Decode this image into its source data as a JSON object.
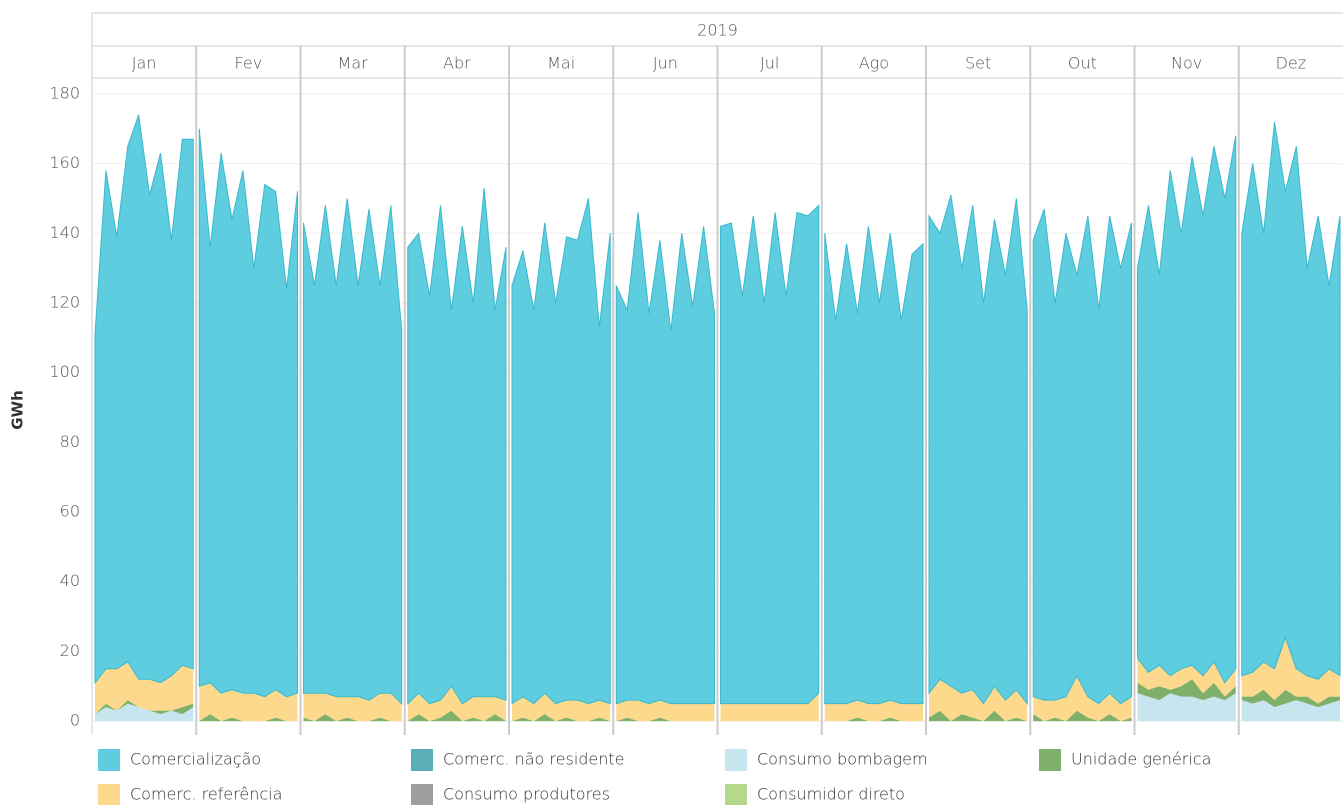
{
  "chart_data": {
    "type": "area",
    "stacked": true,
    "year": "2019",
    "ylabel": "GWh",
    "categories": [
      "Jan",
      "Fev",
      "Mar",
      "Abr",
      "Mai",
      "Jun",
      "Jul",
      "Ago",
      "Set",
      "Out",
      "Nov",
      "Dez"
    ],
    "ylim": [
      -4,
      184
    ],
    "yticks": [
      0,
      20,
      40,
      60,
      80,
      100,
      120,
      140,
      160,
      180
    ],
    "grid": true,
    "series": [
      {
        "name": "Comercialização",
        "color": "#5fcde0",
        "values": [
          [
            100,
            143,
            124,
            148,
            162,
            139,
            152,
            125,
            151,
            152
          ],
          [
            160,
            125,
            155,
            135,
            150,
            122,
            147,
            143,
            117,
            144
          ],
          [
            135,
            117,
            140,
            118,
            143,
            118,
            141,
            117,
            140,
            107
          ],
          [
            131,
            132,
            117,
            142,
            108,
            137,
            113,
            146,
            111,
            130
          ],
          [
            120,
            128,
            113,
            135,
            115,
            133,
            132,
            145,
            107,
            135
          ],
          [
            120,
            112,
            140,
            112,
            132,
            107,
            135,
            114,
            137,
            112
          ],
          [
            137,
            138,
            117,
            140,
            115,
            141,
            117,
            141,
            140,
            140
          ],
          [
            135,
            110,
            132,
            111,
            137,
            115,
            134,
            110,
            129,
            132
          ],
          [
            137,
            128,
            141,
            122,
            139,
            115,
            134,
            122,
            141,
            113
          ],
          [
            131,
            141,
            114,
            133,
            115,
            138,
            113,
            137,
            125,
            136
          ],
          [
            112,
            134,
            112,
            145,
            125,
            146,
            132,
            148,
            139,
            153
          ],
          [
            127,
            146,
            123,
            157,
            128,
            150,
            117,
            133,
            110,
            132
          ]
        ]
      },
      {
        "name": "Comerc. não residente",
        "color": "#5aaeb8",
        "values": [
          [
            0,
            0,
            0,
            0,
            0,
            0,
            0,
            0,
            0,
            0
          ],
          [
            0,
            0,
            0,
            0,
            0,
            0,
            0,
            0,
            0,
            0
          ],
          [
            0,
            0,
            0,
            0,
            0,
            0,
            0,
            0,
            0,
            0
          ],
          [
            0,
            0,
            0,
            0,
            0,
            0,
            0,
            0,
            0,
            0
          ],
          [
            0,
            0,
            0,
            0,
            0,
            0,
            0,
            0,
            0,
            0
          ],
          [
            0,
            0,
            0,
            0,
            0,
            0,
            0,
            0,
            0,
            0
          ],
          [
            0,
            0,
            0,
            0,
            0,
            0,
            0,
            0,
            0,
            0
          ],
          [
            0,
            0,
            0,
            0,
            0,
            0,
            0,
            0,
            0,
            0
          ],
          [
            0,
            0,
            0,
            0,
            0,
            0,
            0,
            0,
            0,
            0
          ],
          [
            0,
            0,
            0,
            0,
            0,
            0,
            0,
            0,
            0,
            0
          ],
          [
            0,
            0,
            0,
            0,
            0,
            0,
            0,
            0,
            0,
            0
          ],
          [
            0,
            0,
            0,
            0,
            0,
            0,
            0,
            0,
            0,
            0
          ]
        ]
      },
      {
        "name": "Consumo bombagem",
        "color": "#c6e5ef",
        "values": [
          [
            2,
            4,
            3,
            5,
            4,
            3,
            2,
            3,
            2,
            4
          ],
          [
            0,
            0,
            0,
            0,
            0,
            0,
            0,
            0,
            0,
            0
          ],
          [
            0,
            0,
            0,
            0,
            0,
            0,
            0,
            0,
            0,
            0
          ],
          [
            0,
            0,
            0,
            0,
            0,
            0,
            0,
            0,
            0,
            0
          ],
          [
            0,
            0,
            0,
            0,
            0,
            0,
            0,
            0,
            0,
            0
          ],
          [
            0,
            0,
            0,
            0,
            0,
            0,
            0,
            0,
            0,
            0
          ],
          [
            0,
            0,
            0,
            0,
            0,
            0,
            0,
            0,
            0,
            0
          ],
          [
            0,
            0,
            0,
            0,
            0,
            0,
            0,
            0,
            0,
            0
          ],
          [
            0,
            0,
            0,
            0,
            0,
            0,
            0,
            0,
            0,
            0
          ],
          [
            0,
            0,
            0,
            0,
            0,
            0,
            0,
            0,
            0,
            0
          ],
          [
            8,
            7,
            6,
            8,
            7,
            7,
            6,
            7,
            6,
            8
          ],
          [
            6,
            5,
            6,
            4,
            5,
            6,
            5,
            4,
            5,
            6
          ]
        ]
      },
      {
        "name": "Unidade genérica",
        "color": "#7fb069",
        "values": [
          [
            0,
            1,
            0,
            1,
            0,
            0,
            1,
            0,
            2,
            1
          ],
          [
            0,
            2,
            0,
            1,
            0,
            0,
            0,
            1,
            0,
            0
          ],
          [
            1,
            0,
            2,
            0,
            1,
            0,
            0,
            1,
            0,
            0
          ],
          [
            0,
            2,
            0,
            1,
            3,
            0,
            1,
            0,
            2,
            0
          ],
          [
            0,
            1,
            0,
            2,
            0,
            1,
            0,
            0,
            1,
            0
          ],
          [
            0,
            1,
            0,
            0,
            1,
            0,
            0,
            0,
            0,
            0
          ],
          [
            0,
            0,
            0,
            0,
            0,
            0,
            0,
            0,
            0,
            0
          ],
          [
            0,
            0,
            0,
            1,
            0,
            0,
            1,
            0,
            0,
            0
          ],
          [
            1,
            3,
            0,
            2,
            1,
            0,
            3,
            0,
            1,
            0
          ],
          [
            2,
            0,
            1,
            0,
            3,
            1,
            0,
            2,
            0,
            1
          ],
          [
            3,
            2,
            4,
            1,
            3,
            5,
            2,
            4,
            1,
            2
          ],
          [
            1,
            2,
            3,
            2,
            4,
            1,
            2,
            1,
            2,
            1
          ]
        ]
      },
      {
        "name": "Comerc. referência",
        "color": "#fcd98d",
        "values": [
          [
            9,
            10,
            12,
            11,
            8,
            9,
            8,
            10,
            12,
            10
          ],
          [
            10,
            9,
            8,
            8,
            8,
            8,
            7,
            8,
            7,
            8
          ],
          [
            7,
            8,
            6,
            7,
            6,
            7,
            6,
            7,
            8,
            5
          ],
          [
            5,
            6,
            5,
            5,
            7,
            5,
            6,
            7,
            5,
            6
          ],
          [
            5,
            6,
            5,
            6,
            5,
            5,
            6,
            5,
            5,
            5
          ],
          [
            5,
            5,
            6,
            5,
            5,
            5,
            5,
            5,
            5,
            5
          ],
          [
            5,
            5,
            5,
            5,
            5,
            5,
            5,
            5,
            5,
            8
          ],
          [
            5,
            5,
            5,
            5,
            5,
            5,
            5,
            5,
            5,
            5
          ],
          [
            7,
            9,
            10,
            6,
            8,
            5,
            7,
            6,
            8,
            5
          ],
          [
            5,
            6,
            5,
            7,
            10,
            6,
            5,
            6,
            5,
            6
          ],
          [
            7,
            5,
            6,
            4,
            5,
            4,
            5,
            6,
            4,
            5
          ],
          [
            6,
            7,
            8,
            9,
            15,
            8,
            6,
            7,
            8,
            6
          ]
        ]
      },
      {
        "name": "Consumo produtores",
        "color": "#9e9e9e",
        "values": [
          [
            0,
            0,
            0,
            0,
            0,
            0,
            0,
            0,
            0,
            0
          ],
          [
            0,
            0,
            0,
            0,
            0,
            0,
            0,
            0,
            0,
            0
          ],
          [
            0,
            0,
            0,
            0,
            0,
            0,
            0,
            0,
            0,
            0
          ],
          [
            0,
            0,
            0,
            0,
            0,
            0,
            0,
            0,
            0,
            0
          ],
          [
            0,
            0,
            0,
            0,
            0,
            0,
            0,
            0,
            0,
            0
          ],
          [
            0,
            0,
            0,
            0,
            0,
            0,
            0,
            0,
            0,
            0
          ],
          [
            0,
            0,
            0,
            0,
            0,
            0,
            0,
            0,
            0,
            0
          ],
          [
            0,
            0,
            0,
            0,
            0,
            0,
            0,
            0,
            0,
            0
          ],
          [
            0,
            0,
            0,
            0,
            0,
            0,
            0,
            0,
            0,
            0
          ],
          [
            0,
            0,
            0,
            0,
            0,
            0,
            0,
            0,
            0,
            0
          ],
          [
            0,
            0,
            0,
            0,
            0,
            0,
            0,
            0,
            0,
            0
          ],
          [
            0,
            0,
            0,
            0,
            0,
            0,
            0,
            0,
            0,
            0
          ]
        ]
      },
      {
        "name": "Consumidor direto",
        "color": "#b5d98c",
        "values": [
          [
            0,
            0,
            0,
            0,
            0,
            0,
            0,
            0,
            0,
            0
          ],
          [
            0,
            0,
            0,
            0,
            0,
            0,
            0,
            0,
            0,
            0
          ],
          [
            0,
            0,
            0,
            0,
            0,
            0,
            0,
            0,
            0,
            0
          ],
          [
            0,
            0,
            0,
            0,
            0,
            0,
            0,
            0,
            0,
            0
          ],
          [
            0,
            0,
            0,
            0,
            0,
            0,
            0,
            0,
            0,
            0
          ],
          [
            0,
            0,
            0,
            0,
            0,
            0,
            0,
            0,
            0,
            0
          ],
          [
            0,
            0,
            0,
            0,
            0,
            0,
            0,
            0,
            0,
            0
          ],
          [
            0,
            0,
            0,
            0,
            0,
            0,
            0,
            0,
            0,
            0
          ],
          [
            0,
            0,
            0,
            0,
            0,
            0,
            0,
            0,
            0,
            0
          ],
          [
            0,
            0,
            0,
            0,
            0,
            0,
            0,
            0,
            0,
            0
          ],
          [
            0,
            0,
            0,
            0,
            0,
            0,
            0,
            0,
            0,
            0
          ],
          [
            0,
            0,
            0,
            0,
            0,
            0,
            0,
            0,
            0,
            0
          ]
        ]
      }
    ]
  }
}
